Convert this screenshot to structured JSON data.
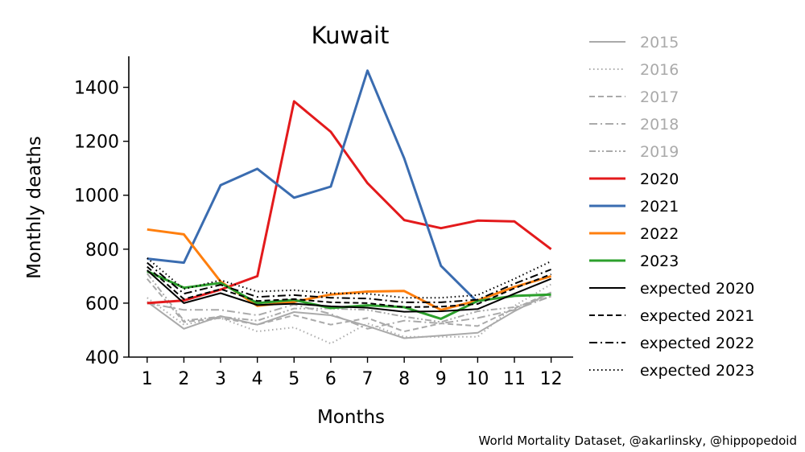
{
  "chart_data": {
    "type": "line",
    "title": "Kuwait",
    "xlabel": "Months",
    "ylabel": "Monthly deaths",
    "x": [
      1,
      2,
      3,
      4,
      5,
      6,
      7,
      8,
      9,
      10,
      11,
      12
    ],
    "xticks": [
      "1",
      "2",
      "3",
      "4",
      "5",
      "6",
      "7",
      "8",
      "9",
      "10",
      "11",
      "12"
    ],
    "xlim": [
      0.5,
      12.6
    ],
    "ylim": [
      400,
      1515
    ],
    "yticks": [
      400,
      600,
      800,
      1000,
      1200,
      1400
    ],
    "grid": false,
    "legend_position": "outside-right",
    "series": [
      {
        "name": "2015",
        "color": "#aaaaaa",
        "dash": "solid",
        "width": 2,
        "text_color": "#aaaaaa",
        "values": [
          605,
          505,
          552,
          520,
          567,
          555,
          515,
          470,
          480,
          490,
          570,
          640
        ]
      },
      {
        "name": "2016",
        "color": "#aaaaaa",
        "dash": "dotted",
        "width": 2,
        "text_color": "#aaaaaa",
        "values": [
          620,
          520,
          545,
          495,
          510,
          450,
          525,
          475,
          475,
          475,
          590,
          670
        ]
      },
      {
        "name": "2017",
        "color": "#aaaaaa",
        "dash": "dashed",
        "width": 2,
        "text_color": "#aaaaaa",
        "values": [
          690,
          530,
          545,
          520,
          555,
          520,
          545,
          495,
          525,
          515,
          580,
          640
        ]
      },
      {
        "name": "2018",
        "color": "#aaaaaa",
        "dash": "dashdot",
        "width": 2,
        "text_color": "#aaaaaa",
        "values": [
          600,
          575,
          575,
          555,
          595,
          560,
          505,
          535,
          525,
          545,
          575,
          625
        ]
      },
      {
        "name": "2019",
        "color": "#aaaaaa",
        "dash": "dashdotdot",
        "width": 2,
        "text_color": "#aaaaaa",
        "values": [
          710,
          535,
          550,
          535,
          580,
          580,
          575,
          550,
          530,
          570,
          585,
          625
        ]
      },
      {
        "name": "2020",
        "color": "#e31a1c",
        "dash": "solid",
        "width": 3,
        "text_color": "#000000",
        "values": [
          600,
          610,
          650,
          700,
          1348,
          1235,
          1045,
          908,
          878,
          906,
          903,
          800
        ]
      },
      {
        "name": "2021",
        "color": "#3a6cb0",
        "dash": "solid",
        "width": 3,
        "text_color": "#000000",
        "values": [
          765,
          750,
          1037,
          1098,
          991,
          1032,
          1462,
          1137,
          738,
          603,
          null,
          null
        ]
      },
      {
        "name": "2022",
        "color": "#ff7f0e",
        "dash": "solid",
        "width": 3,
        "text_color": "#000000",
        "values": [
          873,
          855,
          680,
          590,
          605,
          632,
          643,
          645,
          575,
          610,
          660,
          700
        ]
      },
      {
        "name": "2023",
        "color": "#2ca02c",
        "dash": "solid",
        "width": 3,
        "text_color": "#000000",
        "values": [
          718,
          657,
          675,
          600,
          612,
          582,
          592,
          585,
          542,
          608,
          627,
          632
        ]
      },
      {
        "name": "expected 2020",
        "color": "#000000",
        "dash": "solid",
        "width": 2,
        "text_color": "#000000",
        "values": [
          722,
          600,
          637,
          593,
          598,
          588,
          583,
          568,
          570,
          578,
          635,
          690
        ]
      },
      {
        "name": "expected 2021",
        "color": "#000000",
        "dash": "dashed",
        "width": 2,
        "text_color": "#000000",
        "values": [
          735,
          615,
          652,
          608,
          615,
          603,
          600,
          585,
          587,
          597,
          655,
          707
        ]
      },
      {
        "name": "expected 2022",
        "color": "#000000",
        "dash": "dashdot",
        "width": 2,
        "text_color": "#000000",
        "values": [
          750,
          635,
          668,
          623,
          630,
          620,
          617,
          603,
          603,
          613,
          672,
          725
        ]
      },
      {
        "name": "expected 2023",
        "color": "#000000",
        "dash": "dotted",
        "width": 2,
        "text_color": "#000000",
        "values": [
          767,
          652,
          685,
          643,
          648,
          637,
          635,
          620,
          620,
          630,
          690,
          755
        ]
      }
    ]
  },
  "credit": "World Mortality Dataset, @akarlinsky, @hippopedoid"
}
